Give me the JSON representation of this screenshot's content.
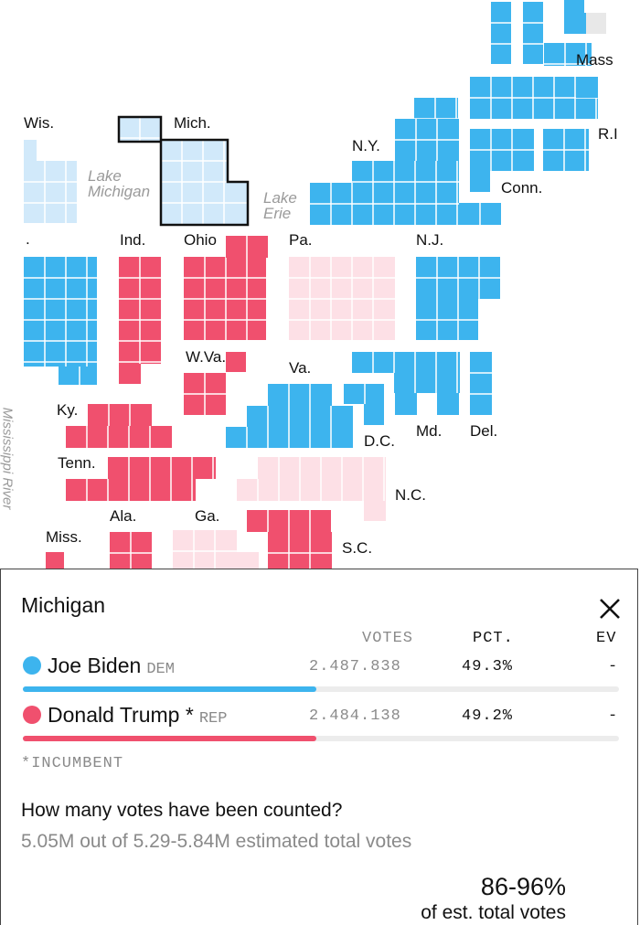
{
  "map": {
    "colors": {
      "dem": "#3db4ee",
      "rep": "#f0506e",
      "lean_dem": "#d1e9fa",
      "lean_rep": "#fde0e6",
      "empty": "#e8e8e8"
    },
    "selected_state": "Michigan",
    "state_labels": [
      {
        "key": "mass",
        "text": "Mass"
      },
      {
        "key": "wis",
        "text": "Wis."
      },
      {
        "key": "mich",
        "text": "Mich."
      },
      {
        "key": "ny",
        "text": "N.Y."
      },
      {
        "key": "ri",
        "text": "R.I"
      },
      {
        "key": "conn",
        "text": "Conn."
      },
      {
        "key": "ill",
        "text": "."
      },
      {
        "key": "ind",
        "text": "Ind."
      },
      {
        "key": "ohio",
        "text": "Ohio"
      },
      {
        "key": "pa",
        "text": "Pa."
      },
      {
        "key": "nj",
        "text": "N.J."
      },
      {
        "key": "wva",
        "text": "W.Va."
      },
      {
        "key": "va",
        "text": "Va."
      },
      {
        "key": "ky",
        "text": "Ky."
      },
      {
        "key": "dc",
        "text": "D.C."
      },
      {
        "key": "md",
        "text": "Md."
      },
      {
        "key": "del",
        "text": "Del."
      },
      {
        "key": "tenn",
        "text": "Tenn."
      },
      {
        "key": "nc",
        "text": "N.C."
      },
      {
        "key": "ala",
        "text": "Ala."
      },
      {
        "key": "ga",
        "text": "Ga."
      },
      {
        "key": "miss",
        "text": "Miss."
      },
      {
        "key": "sc",
        "text": "S.C."
      }
    ],
    "water_labels": [
      {
        "key": "lake-michigan",
        "text": "Lake\nMichigan"
      },
      {
        "key": "lake-erie",
        "text": "Lake\nErie"
      },
      {
        "key": "mississippi-river",
        "text": "Mississippi River"
      }
    ]
  },
  "panel": {
    "title": "Michigan",
    "close_icon": "close-icon",
    "columns": {
      "votes": "VOTES",
      "pct": "PCT.",
      "ev": "EV"
    },
    "candidates": [
      {
        "name": "Joe Biden",
        "marker": "",
        "party": "DEM",
        "votes": "2.487.838",
        "pct": "49.3%",
        "ev": "-",
        "share": 0.493,
        "color": "#3db4ee"
      },
      {
        "name": "Donald Trump",
        "marker": " *",
        "party": "REP",
        "votes": "2.484.138",
        "pct": "49.2%",
        "ev": "-",
        "share": 0.492,
        "color": "#f0506e"
      }
    ],
    "footnote": "*INCUMBENT",
    "question": "How many votes have been counted?",
    "estimate": "5.05M out of 5.29-5.84M estimated total votes",
    "range": "86-96%",
    "range_label": "of est. total votes"
  }
}
